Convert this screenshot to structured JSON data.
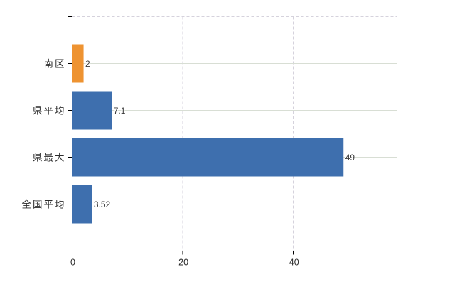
{
  "chart_data": {
    "type": "bar",
    "orientation": "horizontal",
    "title": "",
    "xlabel": "",
    "ylabel": "",
    "categories": [
      "南区",
      "県平均",
      "県最大",
      "全国平均"
    ],
    "values": [
      2,
      7.1,
      49,
      3.52
    ],
    "value_labels": [
      "2",
      "7.1",
      "49",
      "3.52"
    ],
    "bar_colors": [
      "#EE9331",
      "#3E6FAE",
      "#3E6FAE",
      "#3E6FAE"
    ],
    "xlim": [
      0,
      58.8
    ],
    "xticks": [
      0,
      20,
      40
    ],
    "grid": true,
    "legend": false,
    "colors": {
      "background": "#FFFFFF",
      "axis": "#000000",
      "tick_text": "#2B2B2B",
      "value_text": "#3A3A3A",
      "grid_solid": "#D8DED4",
      "grid_dashed": "#D5D2DC",
      "bar_blue": "#3E6FAE",
      "bar_orange": "#EE9331"
    }
  }
}
